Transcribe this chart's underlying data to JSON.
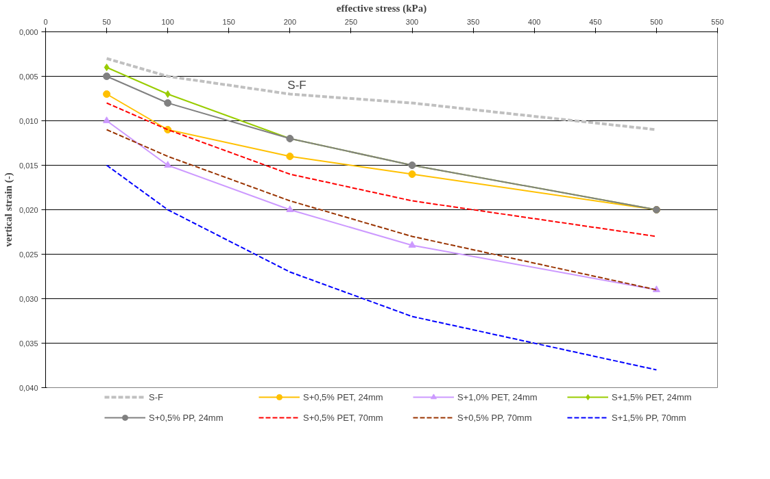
{
  "chart_data": {
    "type": "line",
    "xlabel": "effective stress (kPa)",
    "ylabel": "vertical strain (-)",
    "x": [
      50,
      100,
      200,
      300,
      500
    ],
    "xlim": [
      0,
      550
    ],
    "xticks": [
      0,
      50,
      100,
      150,
      200,
      250,
      300,
      350,
      400,
      450,
      500,
      550
    ],
    "ylim": [
      0.04,
      0
    ],
    "yticks": [
      {
        "value": 0,
        "label": "0,000"
      },
      {
        "value": 0.005,
        "label": "0,005"
      },
      {
        "value": 0.01,
        "label": "0,010"
      },
      {
        "value": 0.015,
        "label": "0,015"
      },
      {
        "value": 0.02,
        "label": "0,020"
      },
      {
        "value": 0.025,
        "label": "0,025"
      },
      {
        "value": 0.03,
        "label": "0,030"
      },
      {
        "value": 0.035,
        "label": "0,035"
      },
      {
        "value": 0.04,
        "label": "0,040"
      }
    ],
    "grid": "y",
    "legend": "bottom",
    "annotations": [
      "S-F"
    ],
    "series": [
      {
        "name": "S-F",
        "color": "#c0c0c0",
        "values": [
          0.003,
          0.005,
          0.007,
          0.008,
          0.011
        ],
        "marker": "none",
        "line_style": "dashed"
      },
      {
        "name": "S+0,5% PET, 24mm",
        "color": "#ffc000",
        "values": [
          0.007,
          0.011,
          0.014,
          0.016,
          0.02
        ],
        "marker": "circle",
        "line_style": "solid"
      },
      {
        "name": "S+1,0% PET, 24mm",
        "color": "#cc99ff",
        "values": [
          0.01,
          0.015,
          0.02,
          0.024,
          0.029
        ],
        "marker": "triangle",
        "line_style": "solid"
      },
      {
        "name": "S+1,5% PET, 24mm",
        "color": "#99cc00",
        "values": [
          0.004,
          0.007,
          0.012,
          0.015,
          0.02
        ],
        "marker": "diamond",
        "line_style": "solid"
      },
      {
        "name": "S+0,5% PP, 24mm",
        "color": "#808080",
        "values": [
          0.005,
          0.008,
          0.012,
          0.015,
          0.02
        ],
        "marker": "circle",
        "line_style": "solid"
      },
      {
        "name": "S+0,5% PET, 70mm",
        "color": "#ff0000",
        "values": [
          0.008,
          0.011,
          0.016,
          0.019,
          0.023
        ],
        "marker": "none",
        "line_style": "dashed"
      },
      {
        "name": "S+0,5% PP, 70mm",
        "color": "#993300",
        "values": [
          0.011,
          0.014,
          0.019,
          0.023,
          0.029
        ],
        "marker": "none",
        "line_style": "dashed"
      },
      {
        "name": "S+1,5% PP, 70mm",
        "color": "#0000ff",
        "values": [
          0.015,
          0.02,
          0.027,
          0.032,
          0.038
        ],
        "marker": "none",
        "line_style": "dashed"
      }
    ]
  }
}
